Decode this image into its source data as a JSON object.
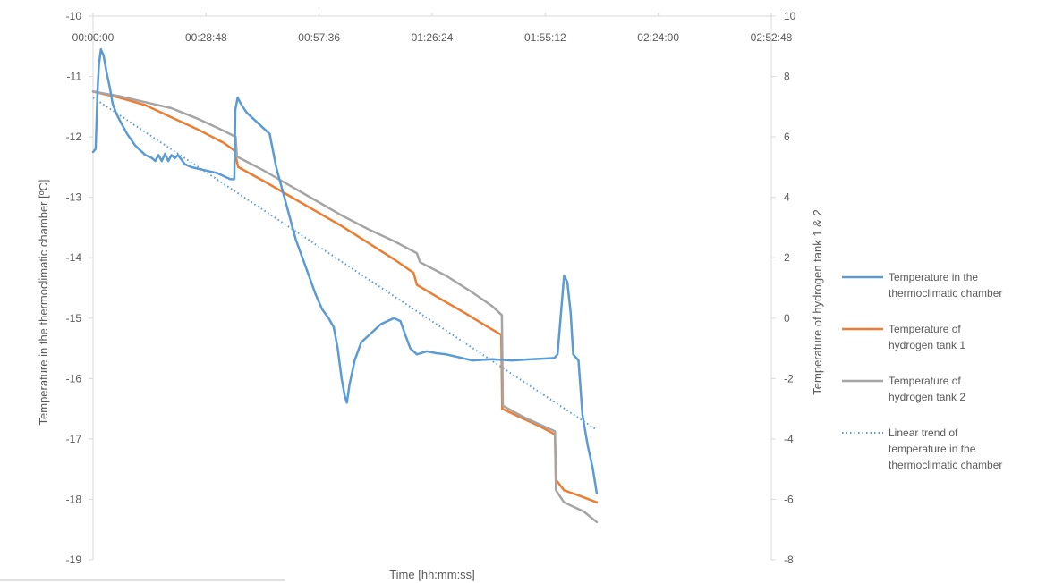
{
  "chart_data": {
    "type": "line",
    "title": "",
    "xlabel": "Time [hh:mm:ss]",
    "ylabel": "Temperature in the thermoclimatic chamber [ºC]",
    "y2label": "Temperature of hydrogen tank 1 & 2",
    "x_unit": "seconds",
    "xlim": [
      0,
      10368
    ],
    "ylim": [
      -19,
      -10
    ],
    "y2lim": [
      -8,
      10
    ],
    "x_ticks": [
      0,
      1728,
      3456,
      5184,
      6912,
      8640,
      10368
    ],
    "x_tick_labels": [
      "00:00:00",
      "00:28:48",
      "00:57:36",
      "01:26:24",
      "01:55:12",
      "02:24:00",
      "02:52:48"
    ],
    "y_ticks": [
      -19,
      -18,
      -17,
      -16,
      -15,
      -14,
      -13,
      -12,
      -11,
      -10
    ],
    "y2_ticks": [
      -8,
      -6,
      -4,
      -2,
      0,
      2,
      4,
      6,
      8,
      10
    ],
    "x_axis_position": "top",
    "grid": false,
    "legend_position": "right",
    "series": [
      {
        "name": "Temperature in the thermoclimatic chamber",
        "axis": "left",
        "color": "#5B9BD5",
        "style": "solid",
        "points": [
          [
            0,
            -12.25
          ],
          [
            40,
            -12.2
          ],
          [
            70,
            -11.2
          ],
          [
            90,
            -10.8
          ],
          [
            120,
            -10.55
          ],
          [
            160,
            -10.65
          ],
          [
            210,
            -10.95
          ],
          [
            260,
            -11.2
          ],
          [
            300,
            -11.45
          ],
          [
            350,
            -11.6
          ],
          [
            420,
            -11.75
          ],
          [
            520,
            -11.95
          ],
          [
            650,
            -12.15
          ],
          [
            800,
            -12.3
          ],
          [
            900,
            -12.35
          ],
          [
            950,
            -12.4
          ],
          [
            1000,
            -12.3
          ],
          [
            1050,
            -12.4
          ],
          [
            1100,
            -12.28
          ],
          [
            1150,
            -12.4
          ],
          [
            1200,
            -12.3
          ],
          [
            1250,
            -12.35
          ],
          [
            1300,
            -12.3
          ],
          [
            1400,
            -12.45
          ],
          [
            1500,
            -12.5
          ],
          [
            1700,
            -12.55
          ],
          [
            1900,
            -12.6
          ],
          [
            2100,
            -12.7
          ],
          [
            2160,
            -12.7
          ],
          [
            2175,
            -11.55
          ],
          [
            2210,
            -11.35
          ],
          [
            2260,
            -11.45
          ],
          [
            2350,
            -11.6
          ],
          [
            2500,
            -11.75
          ],
          [
            2650,
            -11.9
          ],
          [
            2700,
            -11.95
          ],
          [
            2800,
            -12.5
          ],
          [
            2900,
            -12.9
          ],
          [
            3000,
            -13.3
          ],
          [
            3100,
            -13.7
          ],
          [
            3200,
            -14.0
          ],
          [
            3300,
            -14.3
          ],
          [
            3400,
            -14.6
          ],
          [
            3500,
            -14.85
          ],
          [
            3600,
            -15.0
          ],
          [
            3680,
            -15.15
          ],
          [
            3740,
            -15.5
          ],
          [
            3800,
            -16.0
          ],
          [
            3850,
            -16.3
          ],
          [
            3880,
            -16.4
          ],
          [
            3920,
            -16.1
          ],
          [
            4000,
            -15.7
          ],
          [
            4100,
            -15.4
          ],
          [
            4200,
            -15.3
          ],
          [
            4300,
            -15.2
          ],
          [
            4400,
            -15.1
          ],
          [
            4500,
            -15.05
          ],
          [
            4600,
            -15.0
          ],
          [
            4700,
            -15.05
          ],
          [
            4780,
            -15.3
          ],
          [
            4850,
            -15.5
          ],
          [
            4950,
            -15.6
          ],
          [
            5100,
            -15.55
          ],
          [
            5250,
            -15.58
          ],
          [
            5400,
            -15.6
          ],
          [
            5600,
            -15.65
          ],
          [
            5800,
            -15.7
          ],
          [
            6100,
            -15.68
          ],
          [
            6400,
            -15.7
          ],
          [
            6700,
            -15.68
          ],
          [
            6900,
            -15.67
          ],
          [
            7050,
            -15.66
          ],
          [
            7100,
            -15.6
          ],
          [
            7200,
            -14.3
          ],
          [
            7250,
            -14.4
          ],
          [
            7300,
            -14.9
          ],
          [
            7340,
            -15.6
          ],
          [
            7380,
            -15.65
          ],
          [
            7420,
            -15.7
          ],
          [
            7480,
            -16.6
          ],
          [
            7560,
            -17.1
          ],
          [
            7640,
            -17.5
          ],
          [
            7700,
            -17.9
          ]
        ]
      },
      {
        "name": "Temperature of hydrogen tank 1",
        "axis": "right",
        "color": "#ED7D31",
        "style": "solid",
        "points": [
          [
            0,
            7.5
          ],
          [
            400,
            7.3
          ],
          [
            800,
            7.05
          ],
          [
            1200,
            6.65
          ],
          [
            1600,
            6.25
          ],
          [
            2000,
            5.8
          ],
          [
            2160,
            5.55
          ],
          [
            2220,
            5.0
          ],
          [
            2600,
            4.55
          ],
          [
            3000,
            4.05
          ],
          [
            3400,
            3.55
          ],
          [
            3800,
            3.05
          ],
          [
            4200,
            2.5
          ],
          [
            4600,
            1.95
          ],
          [
            4900,
            1.5
          ],
          [
            4950,
            1.1
          ],
          [
            5300,
            0.65
          ],
          [
            5700,
            0.15
          ],
          [
            6000,
            -0.25
          ],
          [
            6240,
            -0.55
          ],
          [
            6255,
            -3.0
          ],
          [
            6500,
            -3.25
          ],
          [
            6800,
            -3.55
          ],
          [
            7060,
            -3.85
          ],
          [
            7075,
            -5.35
          ],
          [
            7200,
            -5.7
          ],
          [
            7400,
            -5.85
          ],
          [
            7700,
            -6.1
          ]
        ]
      },
      {
        "name": "Temperature of hydrogen tank 2",
        "axis": "right",
        "color": "#A5A5A5",
        "style": "solid",
        "points": [
          [
            0,
            7.5
          ],
          [
            400,
            7.35
          ],
          [
            800,
            7.15
          ],
          [
            1200,
            6.95
          ],
          [
            1600,
            6.6
          ],
          [
            2000,
            6.2
          ],
          [
            2180,
            6.0
          ],
          [
            2200,
            5.35
          ],
          [
            2600,
            4.9
          ],
          [
            3000,
            4.4
          ],
          [
            3400,
            3.9
          ],
          [
            3800,
            3.4
          ],
          [
            4200,
            2.95
          ],
          [
            4600,
            2.55
          ],
          [
            4950,
            2.15
          ],
          [
            5000,
            1.85
          ],
          [
            5400,
            1.4
          ],
          [
            5800,
            0.85
          ],
          [
            6100,
            0.4
          ],
          [
            6250,
            0.1
          ],
          [
            6265,
            -2.9
          ],
          [
            6600,
            -3.3
          ],
          [
            7060,
            -3.75
          ],
          [
            7075,
            -5.7
          ],
          [
            7200,
            -6.1
          ],
          [
            7500,
            -6.4
          ],
          [
            7700,
            -6.75
          ]
        ]
      },
      {
        "name": "Linear trend of temperature in the thermoclimatic chamber",
        "axis": "left",
        "color": "#5B9BD5",
        "style": "dotted",
        "points": [
          [
            0,
            -11.35
          ],
          [
            7700,
            -16.85
          ]
        ]
      }
    ]
  },
  "legend": [
    {
      "lines": [
        "Temperature in the",
        "thermoclimatic chamber"
      ],
      "color": "#5B9BD5",
      "style": "solid"
    },
    {
      "lines": [
        "Temperature of",
        "hydrogen tank 1"
      ],
      "color": "#ED7D31",
      "style": "solid"
    },
    {
      "lines": [
        "Temperature of",
        "hydrogen tank 2"
      ],
      "color": "#A5A5A5",
      "style": "solid"
    },
    {
      "lines": [
        "Linear trend of",
        "temperature in the",
        "thermoclimatic chamber"
      ],
      "color": "#5B9BD5",
      "style": "dotted"
    }
  ],
  "colors": {
    "axis": "#D9D9D9",
    "text": "#595959"
  }
}
